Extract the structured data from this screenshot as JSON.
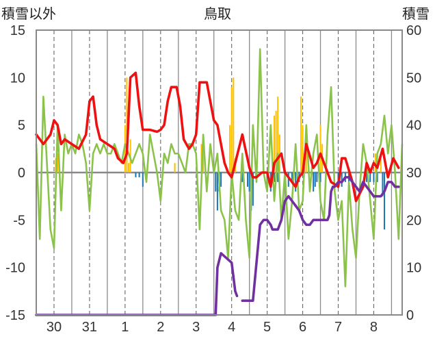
{
  "title": "鳥取",
  "left_axis_label": "積雪以外",
  "right_axis_label": "積雪",
  "chart_data": {
    "type": "line",
    "title": "鳥取",
    "ylabel_left": "積雪以外",
    "ylabel_right": "積雪",
    "x_unit": "day",
    "xlim": [
      0,
      10.3
    ],
    "ylim_left": [
      -15,
      15
    ],
    "ylim_right": [
      0,
      60
    ],
    "y_ticks_left": [
      -15,
      -10,
      -5,
      0,
      5,
      10,
      15
    ],
    "y_ticks_right": [
      0,
      10,
      20,
      30,
      40,
      50,
      60
    ],
    "x_tick_labels": [
      {
        "x": 0.5,
        "label": "30"
      },
      {
        "x": 1.5,
        "label": "31"
      },
      {
        "x": 2.5,
        "label": "1"
      },
      {
        "x": 3.5,
        "label": "2"
      },
      {
        "x": 4.5,
        "label": "3"
      },
      {
        "x": 5.5,
        "label": "4"
      },
      {
        "x": 6.5,
        "label": "5"
      },
      {
        "x": 7.5,
        "label": "6"
      },
      {
        "x": 8.5,
        "label": "7"
      },
      {
        "x": 9.5,
        "label": "8"
      }
    ],
    "grid": {
      "day_boundaries": "solid",
      "midday": "dashed"
    },
    "colors": {
      "red": "#ee1111",
      "green": "#8bc34a",
      "purple": "#7030a0",
      "orange": "#ffc000",
      "blue": "#1f77b4"
    },
    "series": [
      {
        "type": "line",
        "color": "red",
        "axis": "left",
        "x": [
          0.0,
          0.2,
          0.4,
          0.5,
          0.6,
          0.7,
          0.8,
          1.0,
          1.2,
          1.4,
          1.5,
          1.6,
          1.7,
          1.8,
          2.0,
          2.2,
          2.3,
          2.45,
          2.55,
          2.65,
          2.8,
          2.9,
          3.0,
          3.2,
          3.4,
          3.5,
          3.6,
          3.7,
          3.8,
          3.95,
          4.05,
          4.15,
          4.3,
          4.4,
          4.5,
          4.6,
          4.8,
          4.9,
          5.0,
          5.1,
          5.3,
          5.4,
          5.5,
          5.6,
          5.8,
          6.0,
          6.1,
          6.2,
          6.35,
          6.5,
          6.6,
          6.7,
          6.9,
          7.0,
          7.2,
          7.3,
          7.4,
          7.5,
          7.6,
          7.8,
          7.9,
          8.0,
          8.2,
          8.3,
          8.5,
          8.6,
          8.7,
          8.9,
          9.0,
          9.2,
          9.3,
          9.4,
          9.5,
          9.6,
          9.75,
          9.85,
          9.9,
          10.05,
          10.2
        ],
        "y": [
          4,
          3,
          4,
          5.5,
          5,
          3,
          3.5,
          3,
          2.5,
          4,
          7.5,
          8,
          5,
          3.5,
          3,
          2.5,
          1.5,
          1,
          2,
          10,
          10.5,
          7,
          4.5,
          4.5,
          4.3,
          4.5,
          5,
          7.5,
          9,
          9,
          7,
          3.5,
          2.5,
          3,
          4,
          9.5,
          9.5,
          7.5,
          5.5,
          5,
          1,
          0,
          -0.5,
          1,
          4,
          0.5,
          -0.5,
          -0.5,
          0,
          0,
          -1.5,
          1,
          2,
          0,
          -1,
          -1.5,
          -0.5,
          0,
          3,
          0.5,
          1,
          2,
          0,
          -1,
          -1.5,
          1.5,
          1.5,
          -1,
          -3,
          -1.5,
          1,
          0,
          1,
          0.5,
          2.5,
          0.5,
          -0.5,
          1.5,
          0.5
        ]
      },
      {
        "type": "line",
        "color": "green",
        "axis": "left",
        "x": [
          0.0,
          0.1,
          0.2,
          0.3,
          0.4,
          0.5,
          0.6,
          0.7,
          0.8,
          0.9,
          1.0,
          1.1,
          1.2,
          1.3,
          1.4,
          1.5,
          1.6,
          1.7,
          1.8,
          1.9,
          2.0,
          2.1,
          2.2,
          2.3,
          2.4,
          2.5,
          2.6,
          2.7,
          2.8,
          2.9,
          3.0,
          3.1,
          3.2,
          3.3,
          3.4,
          3.5,
          3.6,
          3.7,
          3.8,
          3.9,
          4.0,
          4.1,
          4.2,
          4.3,
          4.4,
          4.5,
          4.6,
          4.7,
          4.8,
          4.9,
          5.0,
          5.1,
          5.2,
          5.3,
          5.4,
          5.5,
          5.6,
          5.7,
          5.8,
          5.9,
          6.0,
          6.1,
          6.2,
          6.3,
          6.4,
          6.5,
          6.6,
          6.7,
          6.8,
          6.9,
          7.0,
          7.1,
          7.2,
          7.3,
          7.4,
          7.5,
          7.6,
          7.7,
          7.8,
          7.9,
          8.0,
          8.1,
          8.2,
          8.3,
          8.4,
          8.5,
          8.6,
          8.7,
          8.8,
          8.9,
          9.0,
          9.1,
          9.2,
          9.3,
          9.4,
          9.5,
          9.6,
          9.7,
          9.8,
          9.9,
          10.0,
          10.1,
          10.2,
          10.3
        ],
        "y": [
          3,
          -7,
          8,
          1,
          -6,
          -8,
          5,
          -4,
          4,
          2,
          3,
          2,
          4,
          3,
          1,
          -4,
          2,
          3,
          2,
          3,
          2,
          2,
          3,
          2,
          1,
          3,
          2,
          1,
          2,
          3,
          2,
          -1,
          4,
          2,
          0,
          -3,
          2,
          1,
          3,
          2,
          2,
          1,
          0,
          3,
          3,
          2,
          -6,
          4,
          -2,
          3,
          0,
          2,
          -4,
          -5,
          -9,
          0,
          -4,
          -5,
          2,
          -5,
          -9,
          5,
          -1,
          13,
          0,
          -2,
          5,
          -3,
          2,
          -5,
          0,
          -7,
          -3,
          3,
          -4,
          -3,
          5,
          -2,
          2,
          4,
          -3,
          -5,
          4,
          9,
          -2,
          -5,
          -3,
          -12,
          -1,
          -6,
          -9,
          -2,
          3,
          1,
          -3,
          -7,
          2,
          3,
          6,
          2,
          5,
          0,
          -7,
          3
        ]
      },
      {
        "type": "line",
        "color": "purple",
        "axis": "right",
        "x": [
          0.0,
          1.0,
          2.0,
          3.0,
          4.0,
          4.8,
          4.9,
          5.0,
          5.05,
          5.1,
          5.2,
          5.35,
          5.5,
          5.55,
          5.6,
          5.65,
          5.7,
          5.8,
          5.95,
          6.0,
          6.05,
          6.1,
          6.15,
          6.3,
          6.4,
          6.5,
          6.6,
          6.65,
          6.8,
          6.9,
          7.0,
          7.1,
          7.2,
          7.3,
          7.4,
          7.5,
          7.6,
          7.7,
          7.8,
          7.9,
          8.0,
          8.1,
          8.2,
          8.25,
          8.3,
          8.35,
          8.4,
          8.5,
          8.6,
          8.7,
          8.8,
          8.9,
          9.0,
          9.1,
          9.2,
          9.3,
          9.4,
          9.5,
          9.6,
          9.7,
          9.8,
          9.9,
          10.0,
          10.1,
          10.2
        ],
        "y": [
          0,
          0,
          0,
          0,
          0,
          0,
          0,
          0,
          0,
          10,
          13,
          12,
          11,
          8,
          5,
          4,
          null,
          3,
          3,
          3,
          3,
          3,
          7,
          19,
          20,
          20,
          19,
          18,
          18,
          20,
          24,
          25,
          24,
          23,
          22,
          20,
          19,
          19,
          20,
          20,
          20,
          20,
          20,
          21,
          26,
          27,
          27,
          28,
          28,
          29,
          29,
          28,
          27,
          26,
          28,
          27,
          26,
          25,
          25,
          25,
          26,
          28,
          28,
          27,
          27
        ]
      },
      {
        "type": "bar",
        "color": "orange",
        "axis": "left",
        "bar_width": 0.04,
        "x": [
          0.55,
          0.6,
          2.5,
          2.55,
          2.6,
          2.65,
          3.9,
          4.65,
          4.7,
          5.45,
          5.5,
          5.55,
          5.6,
          6.7,
          6.75,
          6.8,
          6.85,
          7.45,
          7.5,
          7.55,
          7.6,
          8.0,
          8.05,
          9.55,
          9.7
        ],
        "y": [
          1.5,
          2,
          5,
          10,
          1,
          3.5,
          1,
          3,
          2,
          5,
          9,
          10,
          1.5,
          6,
          6.5,
          8,
          4,
          8,
          5,
          2,
          3,
          5,
          3,
          2,
          2
        ]
      },
      {
        "type": "bar",
        "color": "blue",
        "axis": "left",
        "bar_width": 0.04,
        "x": [
          2.8,
          2.9,
          3.0,
          5.05,
          5.1,
          5.15,
          5.2,
          5.8,
          5.95,
          6.0,
          6.05,
          6.1,
          6.2,
          6.5,
          6.6,
          6.7,
          6.8,
          7.1,
          7.2,
          7.3,
          7.4,
          7.8,
          7.85,
          7.9,
          8.0,
          8.5,
          8.6,
          8.7,
          8.8,
          9.3,
          9.4,
          9.5,
          9.6,
          9.75,
          9.8
        ],
        "y": [
          -0.5,
          -0.5,
          -1.5,
          -2,
          -4,
          -2,
          -1.5,
          -1,
          -1.5,
          -2,
          -4,
          -3.5,
          -1,
          -1.5,
          -2,
          -1,
          -1,
          -1.5,
          -1,
          -2,
          -1,
          -2,
          -1.5,
          -1,
          -1,
          -1,
          -1.5,
          -1,
          -1,
          -1,
          -1,
          -1,
          -1,
          -2.5,
          -6
        ]
      }
    ]
  }
}
